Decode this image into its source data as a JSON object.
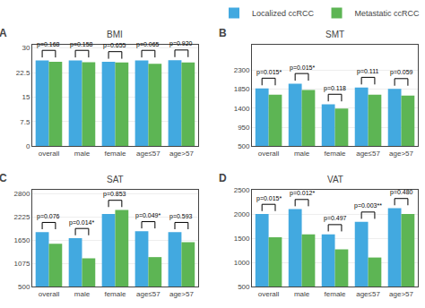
{
  "chart_data": [
    {
      "type": "bar",
      "label": "A",
      "title": "BMI",
      "categories": [
        "overall",
        "male",
        "female",
        "age≤57",
        "age>57"
      ],
      "series": [
        {
          "name": "Localized ccRCC",
          "color": "#42a9e0",
          "values": [
            26.2,
            26.2,
            25.8,
            26.2,
            26.3
          ]
        },
        {
          "name": "Metastatic ccRCC",
          "color": "#5db554",
          "values": [
            25.8,
            25.7,
            25.6,
            25.2,
            25.6
          ]
        }
      ],
      "annotations": [
        "p=0.168",
        "p=0.158",
        "p=0.655",
        "p=0.065",
        "p=0.920"
      ],
      "ylim": [
        0,
        31
      ],
      "yticks": [
        0,
        7.5,
        15,
        22.5,
        30
      ],
      "grid": true,
      "legend": "top right"
    },
    {
      "type": "bar",
      "label": "B",
      "title": "SMT",
      "categories": [
        "overall",
        "male",
        "female",
        "age≤57",
        "age>57"
      ],
      "series": [
        {
          "name": "Localized ccRCC",
          "color": "#42a9e0",
          "values": [
            1870,
            1980,
            1490,
            1890,
            1860
          ]
        },
        {
          "name": "Metastatic ccRCC",
          "color": "#5db554",
          "values": [
            1720,
            1830,
            1390,
            1720,
            1700
          ]
        }
      ],
      "annotations": [
        "p=0.015*",
        "p=0.015*",
        "p=0.118",
        "p=0.111",
        "p=0.059"
      ],
      "ylim": [
        500,
        2900
      ],
      "yticks": [
        500,
        950,
        1400,
        1850,
        2300
      ],
      "grid": true,
      "legend": "top right"
    },
    {
      "type": "bar",
      "label": "C",
      "title": "SAT",
      "categories": [
        "overall",
        "male",
        "female",
        "age≤57",
        "age>57"
      ],
      "series": [
        {
          "name": "Localized ccRCC",
          "color": "#42a9e0",
          "values": [
            1850,
            1700,
            2300,
            1870,
            1850
          ]
        },
        {
          "name": "Metastatic ccRCC",
          "color": "#5db554",
          "values": [
            1560,
            1200,
            2400,
            1230,
            1600
          ]
        }
      ],
      "annotations": [
        "p=0.076",
        "p=0.014*",
        "p=0.853",
        "p=0.049*",
        "p=0.593"
      ],
      "ylim": [
        500,
        2900
      ],
      "yticks": [
        500,
        1075,
        1650,
        2225,
        2800
      ],
      "grid": true,
      "legend": "top right"
    },
    {
      "type": "bar",
      "label": "D",
      "title": "VAT",
      "categories": [
        "overall",
        "male",
        "female",
        "age≤57",
        "age>57"
      ],
      "series": [
        {
          "name": "Localized ccRCC",
          "color": "#42a9e0",
          "values": [
            2000,
            2100,
            1580,
            1840,
            2120
          ]
        },
        {
          "name": "Metastatic ccRCC",
          "color": "#5db554",
          "values": [
            1520,
            1580,
            1270,
            1100,
            2000
          ]
        }
      ],
      "annotations": [
        "p=0.015*",
        "p=0.012*",
        "p=0.497",
        "p=0.003**",
        "p=0.480"
      ],
      "ylim": [
        500,
        2500
      ],
      "yticks": [
        500,
        1000,
        1500,
        2000,
        2500
      ],
      "grid": true,
      "legend": "top right"
    }
  ]
}
